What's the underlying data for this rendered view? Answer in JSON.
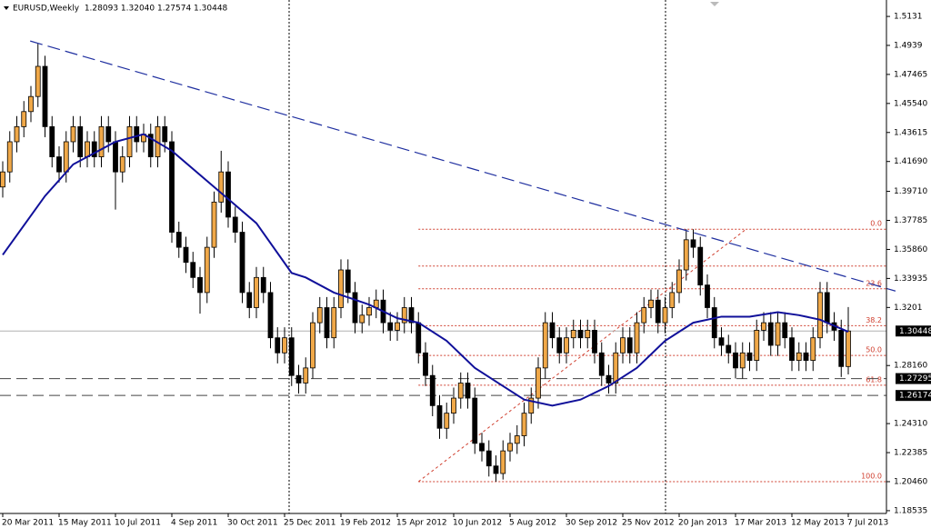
{
  "chart_data": {
    "type": "candlestick",
    "title": "EURUSD,Weekly  1.28093 1.32040 1.27574 1.30448",
    "categories": [
      "20 Mar 2011",
      null,
      null,
      null,
      null,
      null,
      null,
      null,
      "15 May 2011",
      null,
      null,
      null,
      null,
      null,
      null,
      null,
      "10 Jul 2011",
      null,
      null,
      null,
      null,
      null,
      null,
      null,
      "4 Sep 2011",
      null,
      null,
      null,
      null,
      null,
      null,
      null,
      "30 Oct 2011",
      null,
      null,
      null,
      null,
      null,
      null,
      null,
      "25 Dec 2011",
      null,
      null,
      null,
      null,
      null,
      null,
      null,
      "19 Feb 2012",
      null,
      null,
      null,
      null,
      null,
      null,
      null,
      "15 Apr 2012",
      null,
      null,
      null,
      null,
      null,
      null,
      null,
      "10 Jun 2012",
      null,
      null,
      null,
      null,
      null,
      null,
      null,
      "5 Aug 2012",
      null,
      null,
      null,
      null,
      null,
      null,
      null,
      "30 Sep 2012",
      null,
      null,
      null,
      null,
      null,
      null,
      null,
      "25 Nov 2012",
      null,
      null,
      null,
      null,
      null,
      null,
      null,
      "20 Jan 2013",
      null,
      null,
      null,
      null,
      null,
      null,
      null,
      "17 Mar 2013",
      null,
      null,
      null,
      null,
      null,
      null,
      null,
      "12 May 2013",
      null,
      null,
      null,
      null,
      null,
      null,
      null,
      "7 Jul 2013"
    ],
    "candles": {
      "open": [
        1.4,
        1.41,
        1.43,
        1.44,
        1.45,
        1.46,
        1.48,
        1.44,
        1.42,
        1.41,
        1.43,
        1.44,
        1.42,
        1.43,
        1.42,
        1.44,
        1.43,
        1.41,
        1.42,
        1.44,
        1.43,
        1.435,
        1.42,
        1.44,
        1.43,
        1.37,
        1.36,
        1.35,
        1.34,
        1.33,
        1.36,
        1.39,
        1.41,
        1.38,
        1.37,
        1.33,
        1.32,
        1.34,
        1.33,
        1.3,
        1.29,
        1.3,
        1.275,
        1.27,
        1.28,
        1.31,
        1.32,
        1.3,
        1.32,
        1.345,
        1.33,
        1.31,
        1.315,
        1.32,
        1.325,
        1.31,
        1.305,
        1.31,
        1.32,
        1.31,
        1.29,
        1.275,
        1.255,
        1.24,
        1.25,
        1.26,
        1.27,
        1.26,
        1.23,
        1.225,
        1.215,
        1.21,
        1.225,
        1.23,
        1.235,
        1.25,
        1.26,
        1.28,
        1.31,
        1.3,
        1.29,
        1.3,
        1.305,
        1.3,
        1.305,
        1.29,
        1.275,
        1.27,
        1.29,
        1.3,
        1.29,
        1.31,
        1.32,
        1.325,
        1.31,
        1.32,
        1.33,
        1.345,
        1.365,
        1.36,
        1.335,
        1.32,
        1.3,
        1.295,
        1.29,
        1.28,
        1.29,
        1.285,
        1.305,
        1.31,
        1.295,
        1.31,
        1.3,
        1.285,
        1.29,
        1.285,
        1.3,
        1.33,
        1.31,
        1.305,
        1.28093
      ],
      "high": [
        1.417,
        1.437,
        1.447,
        1.457,
        1.467,
        1.495,
        1.487,
        1.447,
        1.427,
        1.437,
        1.447,
        1.447,
        1.437,
        1.437,
        1.447,
        1.447,
        1.437,
        1.427,
        1.447,
        1.447,
        1.442,
        1.442,
        1.447,
        1.447,
        1.437,
        1.377,
        1.367,
        1.357,
        1.347,
        1.367,
        1.397,
        1.424,
        1.417,
        1.387,
        1.377,
        1.337,
        1.347,
        1.347,
        1.337,
        1.307,
        1.307,
        1.307,
        1.282,
        1.287,
        1.317,
        1.327,
        1.327,
        1.327,
        1.352,
        1.352,
        1.337,
        1.322,
        1.327,
        1.332,
        1.332,
        1.317,
        1.317,
        1.327,
        1.327,
        1.317,
        1.297,
        1.282,
        1.262,
        1.257,
        1.267,
        1.277,
        1.277,
        1.267,
        1.237,
        1.232,
        1.222,
        1.232,
        1.237,
        1.242,
        1.257,
        1.267,
        1.287,
        1.317,
        1.317,
        1.307,
        1.307,
        1.312,
        1.312,
        1.312,
        1.312,
        1.297,
        1.282,
        1.297,
        1.307,
        1.307,
        1.317,
        1.327,
        1.332,
        1.332,
        1.327,
        1.337,
        1.352,
        1.372,
        1.372,
        1.367,
        1.342,
        1.327,
        1.307,
        1.302,
        1.297,
        1.297,
        1.297,
        1.312,
        1.317,
        1.317,
        1.317,
        1.317,
        1.307,
        1.297,
        1.297,
        1.307,
        1.337,
        1.337,
        1.317,
        1.312,
        1.3204
      ],
      "low": [
        1.393,
        1.403,
        1.423,
        1.433,
        1.443,
        1.453,
        1.433,
        1.413,
        1.403,
        1.403,
        1.423,
        1.413,
        1.413,
        1.413,
        1.413,
        1.423,
        1.385,
        1.403,
        1.413,
        1.423,
        1.423,
        1.413,
        1.413,
        1.423,
        1.363,
        1.353,
        1.343,
        1.333,
        1.316,
        1.323,
        1.353,
        1.383,
        1.373,
        1.363,
        1.323,
        1.313,
        1.313,
        1.323,
        1.293,
        1.283,
        1.283,
        1.268,
        1.263,
        1.263,
        1.273,
        1.303,
        1.293,
        1.293,
        1.313,
        1.323,
        1.303,
        1.303,
        1.308,
        1.313,
        1.303,
        1.298,
        1.298,
        1.303,
        1.303,
        1.283,
        1.268,
        1.248,
        1.233,
        1.233,
        1.243,
        1.253,
        1.253,
        1.223,
        1.218,
        1.208,
        1.2046,
        1.206,
        1.218,
        1.223,
        1.228,
        1.243,
        1.253,
        1.273,
        1.293,
        1.283,
        1.283,
        1.293,
        1.293,
        1.293,
        1.283,
        1.268,
        1.263,
        1.263,
        1.283,
        1.283,
        1.283,
        1.303,
        1.313,
        1.303,
        1.303,
        1.313,
        1.323,
        1.338,
        1.353,
        1.328,
        1.313,
        1.293,
        1.288,
        1.283,
        1.273,
        1.273,
        1.278,
        1.278,
        1.298,
        1.288,
        1.288,
        1.293,
        1.278,
        1.278,
        1.278,
        1.278,
        1.293,
        1.303,
        1.298,
        1.274,
        1.27574
      ],
      "close": [
        1.41,
        1.43,
        1.44,
        1.45,
        1.46,
        1.48,
        1.44,
        1.42,
        1.41,
        1.43,
        1.44,
        1.42,
        1.43,
        1.42,
        1.44,
        1.43,
        1.41,
        1.42,
        1.44,
        1.43,
        1.435,
        1.42,
        1.44,
        1.43,
        1.37,
        1.36,
        1.35,
        1.34,
        1.33,
        1.36,
        1.39,
        1.41,
        1.38,
        1.37,
        1.33,
        1.32,
        1.34,
        1.33,
        1.3,
        1.29,
        1.3,
        1.275,
        1.27,
        1.28,
        1.31,
        1.32,
        1.3,
        1.32,
        1.345,
        1.33,
        1.31,
        1.315,
        1.32,
        1.325,
        1.31,
        1.305,
        1.31,
        1.32,
        1.31,
        1.29,
        1.275,
        1.255,
        1.24,
        1.25,
        1.26,
        1.27,
        1.26,
        1.23,
        1.225,
        1.215,
        1.21,
        1.225,
        1.23,
        1.235,
        1.25,
        1.26,
        1.28,
        1.31,
        1.3,
        1.29,
        1.3,
        1.305,
        1.3,
        1.305,
        1.29,
        1.275,
        1.27,
        1.29,
        1.3,
        1.29,
        1.31,
        1.32,
        1.325,
        1.31,
        1.32,
        1.33,
        1.345,
        1.365,
        1.36,
        1.335,
        1.32,
        1.3,
        1.295,
        1.29,
        1.28,
        1.29,
        1.285,
        1.305,
        1.31,
        1.295,
        1.31,
        1.3,
        1.285,
        1.29,
        1.285,
        1.3,
        1.33,
        1.31,
        1.305,
        1.28093,
        1.30448
      ],
      "up_color": "#f0a848",
      "down_color": "#000000"
    },
    "moving_average": {
      "color": "#10109a",
      "x": [
        0,
        6,
        10,
        16,
        20,
        24,
        30,
        36,
        41,
        43,
        47,
        52,
        56,
        59,
        63,
        67,
        71,
        74,
        78,
        82,
        86,
        90,
        94,
        98,
        102,
        106,
        110,
        113,
        116,
        120
      ],
      "values": [
        1.355,
        1.394,
        1.415,
        1.43,
        1.435,
        1.424,
        1.4,
        1.376,
        1.343,
        1.34,
        1.33,
        1.322,
        1.313,
        1.31,
        1.298,
        1.28,
        1.268,
        1.259,
        1.255,
        1.259,
        1.268,
        1.28,
        1.298,
        1.31,
        1.314,
        1.314,
        1.317,
        1.315,
        1.312,
        1.304
      ]
    },
    "trendline": {
      "color": "#2030a0",
      "x": [
        3.9,
        126.7
      ],
      "values": [
        1.4968,
        1.331
      ]
    },
    "fibonacci": {
      "color": "#d04030",
      "x": [
        59,
        105.5
      ],
      "high": 1.372,
      "low": 1.2046,
      "levels": [
        0,
        14.6,
        23.6,
        38.2,
        50,
        61.8,
        100
      ],
      "level_labels": [
        "0.0",
        null,
        "23.6",
        "38.2",
        "50.0",
        "61.8",
        "100.0"
      ]
    },
    "price_markers": [
      1.30448,
      1.27295,
      1.26174
    ],
    "ylim": [
      1.1835,
      1.524
    ],
    "yticks": [
      1.5131,
      1.4939,
      1.47465,
      {
        "value": 1.4554,
        "label": "1.45540"
      },
      1.43615,
      {
        "value": 1.4169,
        "label": "1.41690"
      },
      {
        "value": 1.3971,
        "label": "1.39710"
      },
      1.37785,
      {
        "value": 1.3586,
        "label": "1.35860"
      },
      1.33935,
      1.3201,
      {
        "value": 1.2816,
        "label": "1.28160"
      },
      {
        "value": 1.2431,
        "label": "1.24310"
      },
      1.22385,
      {
        "value": 1.2046,
        "label": "1.20460"
      },
      1.18535
    ]
  }
}
